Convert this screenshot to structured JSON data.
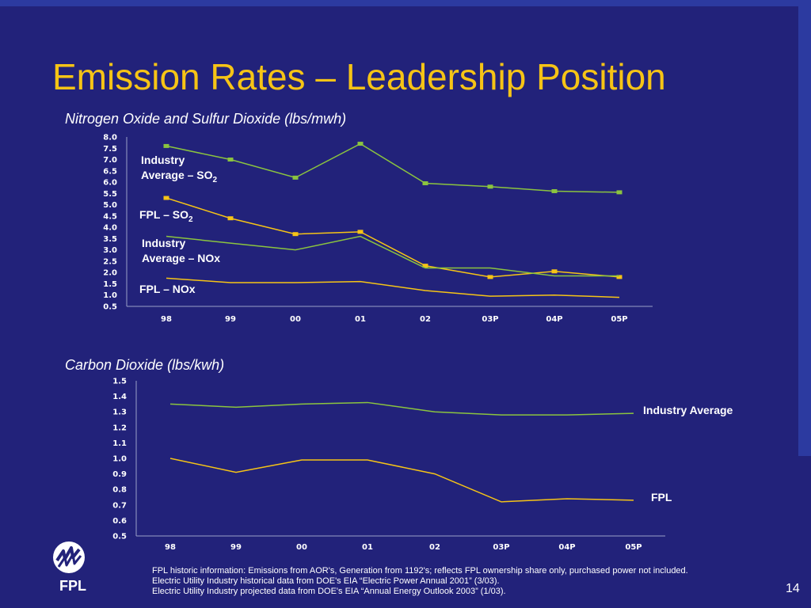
{
  "slide": {
    "title": "Emission Rates – Leadership Position",
    "page_number": "14",
    "logo_text": "FPL",
    "footnotes": [
      "FPL historic information: Emissions from AOR's, Generation from 1192's; reflects FPL ownership share only, purchased power not included.",
      "Electric Utility Industry historical data from DOE's EIA “Electric Power Annual 2001” (3/03).",
      "Electric Utility Industry projected data from DOE's EIA “Annual Energy Outlook 2003” (1/03)."
    ],
    "colors": {
      "background": "#22227a",
      "title": "#f6c416",
      "industry_line": "#8bc43f",
      "fpl_line": "#f6c416"
    }
  },
  "chart_data": [
    {
      "type": "line",
      "title": "Nitrogen Oxide and Sulfur Dioxide (lbs/mwh)",
      "categories": [
        "98",
        "99",
        "00",
        "01",
        "02",
        "03P",
        "04P",
        "05P"
      ],
      "ylim": [
        0.5,
        8.0
      ],
      "yticks": [
        "8.0",
        "7.5",
        "7.0",
        "6.5",
        "6.0",
        "5.5",
        "5.0",
        "4.5",
        "4.0",
        "3.5",
        "3.0",
        "2.5",
        "2.0",
        "1.5",
        "1.0",
        "0.5"
      ],
      "series": [
        {
          "name": "Industry Average – SO2",
          "label_main": "Industry",
          "label_second": "Average – SO",
          "label_sub": "2",
          "color": "#8bc43f",
          "markers": true,
          "values": [
            7.6,
            7.0,
            6.2,
            7.7,
            5.95,
            5.8,
            5.6,
            5.55
          ]
        },
        {
          "name": "FPL – SO2",
          "label_main": "FPL – SO",
          "label_sub": "2",
          "color": "#f6c416",
          "markers": true,
          "values": [
            5.3,
            4.4,
            3.7,
            3.8,
            2.3,
            1.8,
            2.05,
            1.8
          ]
        },
        {
          "name": "Industry Average – NOx",
          "label_main": "Industry",
          "label_second": "Average – NOx",
          "color": "#8bc43f",
          "markers": false,
          "values": [
            3.6,
            3.3,
            3.0,
            3.6,
            2.2,
            2.2,
            1.85,
            1.85
          ]
        },
        {
          "name": "FPL – NOx",
          "label_main": "FPL – NOx",
          "color": "#f6c416",
          "markers": false,
          "values": [
            1.75,
            1.55,
            1.55,
            1.6,
            1.2,
            0.95,
            1.0,
            0.9
          ]
        }
      ]
    },
    {
      "type": "line",
      "title": "Carbon Dioxide (lbs/kwh)",
      "categories": [
        "98",
        "99",
        "00",
        "01",
        "02",
        "03P",
        "04P",
        "05P"
      ],
      "ylim": [
        0.5,
        1.5
      ],
      "yticks": [
        "1.5",
        "1.4",
        "1.3",
        "1.2",
        "1.1",
        "1.0",
        "0.9",
        "0.8",
        "0.7",
        "0.6",
        "0.5"
      ],
      "series": [
        {
          "name": "Industry Average",
          "label_main": "Industry Average",
          "color": "#8bc43f",
          "markers": false,
          "values": [
            1.35,
            1.33,
            1.35,
            1.36,
            1.3,
            1.28,
            1.28,
            1.29
          ]
        },
        {
          "name": "FPL",
          "label_main": "FPL",
          "color": "#f6c416",
          "markers": false,
          "values": [
            1.0,
            0.91,
            0.99,
            0.99,
            0.9,
            0.72,
            0.74,
            0.73
          ]
        }
      ]
    }
  ]
}
